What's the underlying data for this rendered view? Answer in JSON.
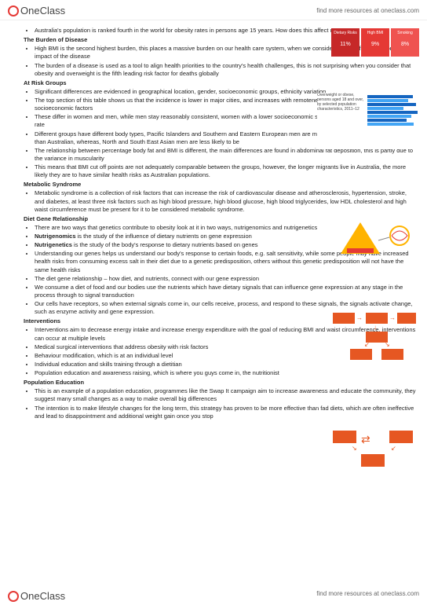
{
  "header": {
    "logo_text": "OneClass",
    "tagline": "find more resources at oneclass.com"
  },
  "intro_bullet": "Australia's population is ranked fourth in the world for obesity rates in persons age 15 years. How does this affect us?",
  "sections": [
    {
      "title": "The Burden of Disease",
      "items": [
        "High BMI is the second highest burden, this places a massive burden on our health care system, when we consider both the fatal and non-fatal impact of the disease",
        "The burden of a disease is used as a tool to align health priorities to the country's health challenges, this is not surprising when you consider that obesity and overweight is the fifth leading risk factor for deaths globally"
      ]
    },
    {
      "title": "At Risk Groups",
      "items": [
        "Significant differences are evidenced in geographical location, gender, socioeconomic groups, ethnicity variation",
        "The top section of this table shows us that the incidence is lower in major cities, and increases with remoteness, the lower section looks at socioeconomic factors",
        "These differ in women and men, while men stay reasonably consistent, women with a lower socioeconomic status tend to have a higher obesity rate",
        "Different groups have different body types, Pacific Islanders and Southern and Eastern European men are more likely to be overweight or obese than Australian, whereas, North and South East Asian men are less likely to be",
        "The relationship between percentage body fat and BMI is different, the main differences are found in abdominal fat deposition, this is partly due to the variance in muscularity",
        "This means that BMI cut off points are not adequately comparable between the groups, however, the longer migrants live in Australia, the more likely they are to have similar health risks as Australian populations."
      ]
    },
    {
      "title": "Metabolic Syndrome",
      "items": [
        "Metabolic syndrome is a collection of risk factors that can increase the risk of cardiovascular disease and atherosclerosis, hypertension, stroke, and diabetes, at least three risk factors such as high blood pressure, high blood glucose, high blood triglycerides, low HDL cholesterol and high waist circumference must be present for it to be considered metabolic syndrome."
      ]
    },
    {
      "title": "Diet Gene Relationship",
      "items": [
        "There are two ways that genetics contribute to obesity look at it in two ways, nutrigenomics and nutrigenetics",
        "<b>Nutrigenomics</b> is the study of the influence of dietary nutrients on gene expression",
        "<b>Nutrigenetics</b> is the study of the body's response to dietary nutrients based on genes",
        "Understanding our genes helps us understand our body's response to certain foods, e.g. salt sensitivity, while some people may have increased health risks from consuming excess salt in their diet due to a genetic predisposition, others without this genetic predisposition will not have the same health risks",
        "The diet gene relationship – how diet, and nutrients, connect with our gene expression",
        "We consume a diet of food and our bodies use the nutrients which have dietary signals that can influence gene expression at any stage in the process through to signal transduction",
        "Our cells have receptors, so when external signals come in, our cells receive, process, and respond to these signals, the signals activate change, such as enzyme activity and gene expression."
      ]
    },
    {
      "title": "Interventions",
      "items": [
        "Interventions aim to decrease energy intake and increase energy expenditure with the goal of reducing BMI and waist circumference, interventions can occur at multiple levels",
        "Medical surgical interventions that address obesity with risk factors",
        "Behaviour modification, which is at an individual level",
        "Individual education and skills training through a dietitian",
        "Population education and awareness raising, which is where you guys come in, the nutritionist"
      ]
    },
    {
      "title": "Population Education",
      "items": [
        "This is an example of a population education, programmes like the Swap It campaign aim to increase awareness and educate the community, they suggest many small changes as a way to make overall big differences",
        "The intention is to make lifestyle changes for the long term, this strategy has proven to be more effective than fad diets, which are often ineffective and lead to disappointment and additional weight gain once you stop"
      ]
    }
  ],
  "top_boxes": {
    "labels": [
      "Dietary Risks",
      "High BMI",
      "Smoking"
    ],
    "values": [
      "11%",
      "9%",
      "8%"
    ],
    "colors": [
      "#c62828",
      "#e53935",
      "#ef5350"
    ]
  },
  "bar_chart": {
    "title": "Overweight or obese, persons aged 18 and over, by selected population characteristics, 2011–12",
    "colors": [
      "#1565c0",
      "#42a5f5"
    ],
    "rows": [
      72,
      65,
      78,
      58,
      80,
      70,
      62,
      74
    ]
  },
  "triangle": {
    "color": "#ffb300",
    "secondary": "#e53935"
  },
  "footer": {
    "logo_text": "OneClass",
    "tagline": "find more resources at oneclass.com"
  }
}
